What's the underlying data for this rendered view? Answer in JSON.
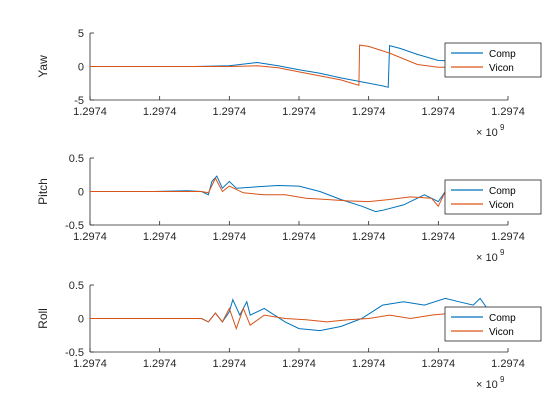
{
  "colors": {
    "comp": "#0072BD",
    "vicon": "#D95319",
    "axis": "#262626",
    "legend_border": "#262626",
    "background": "#FFFFFF"
  },
  "chart_data": [
    {
      "type": "line",
      "ylabel": "Yaw",
      "ylim": [
        -5,
        5
      ],
      "yticks": [
        "-5",
        "0",
        "5"
      ],
      "xticks": [
        "1.2974",
        "1.2974",
        "1.2974",
        "1.2974",
        "1.2974",
        "1.2974",
        "1.2974"
      ],
      "x_exponent_base": "× 10",
      "x_exponent": "9",
      "xlim": [
        0,
        6
      ],
      "legend_position": "right",
      "series": [
        {
          "name": "Comp",
          "color": "#0072BD",
          "points": [
            [
              0,
              0
            ],
            [
              0.5,
              0
            ],
            [
              1.0,
              0
            ],
            [
              1.5,
              0
            ],
            [
              2.0,
              0.1
            ],
            [
              2.4,
              0.6
            ],
            [
              2.7,
              0.1
            ],
            [
              3.0,
              -0.5
            ],
            [
              3.3,
              -1.0
            ],
            [
              3.6,
              -1.7
            ],
            [
              3.9,
              -2.3
            ],
            [
              4.2,
              -2.9
            ],
            [
              4.28,
              -3.1
            ],
            [
              4.3,
              3.1
            ],
            [
              4.45,
              2.7
            ],
            [
              4.7,
              1.8
            ],
            [
              5.0,
              0.9
            ],
            [
              5.4,
              0.8
            ],
            [
              5.8,
              0.8
            ],
            [
              6.0,
              0.8
            ]
          ]
        },
        {
          "name": "Vicon",
          "color": "#D95319",
          "points": [
            [
              0,
              0
            ],
            [
              0.5,
              0
            ],
            [
              1.0,
              0
            ],
            [
              1.5,
              0
            ],
            [
              2.0,
              0
            ],
            [
              2.4,
              0.1
            ],
            [
              2.7,
              -0.2
            ],
            [
              3.0,
              -0.8
            ],
            [
              3.3,
              -1.4
            ],
            [
              3.6,
              -2.0
            ],
            [
              3.86,
              -2.8
            ],
            [
              3.87,
              3.2
            ],
            [
              4.0,
              3.0
            ],
            [
              4.3,
              2.0
            ],
            [
              4.7,
              0.3
            ],
            [
              5.0,
              -0.1
            ],
            [
              5.4,
              -0.1
            ],
            [
              5.8,
              -0.1
            ],
            [
              6.0,
              -0.1
            ]
          ]
        }
      ]
    },
    {
      "type": "line",
      "ylabel": "Pitch",
      "ylim": [
        -0.5,
        0.5
      ],
      "yticks": [
        "-0.5",
        "0",
        "0.5"
      ],
      "xticks": [
        "1.2974",
        "1.2974",
        "1.2974",
        "1.2974",
        "1.2974",
        "1.2974",
        "1.2974"
      ],
      "x_exponent_base": "× 10",
      "x_exponent": "9",
      "xlim": [
        0,
        6
      ],
      "legend_position": "right",
      "series": [
        {
          "name": "Comp",
          "color": "#0072BD",
          "points": [
            [
              0,
              0
            ],
            [
              0.9,
              0
            ],
            [
              1.4,
              0.01
            ],
            [
              1.6,
              0.0
            ],
            [
              1.7,
              -0.05
            ],
            [
              1.75,
              0.15
            ],
            [
              1.82,
              0.23
            ],
            [
              1.9,
              0.05
            ],
            [
              2.0,
              0.15
            ],
            [
              2.1,
              0.05
            ],
            [
              2.4,
              0.07
            ],
            [
              2.7,
              0.09
            ],
            [
              3.0,
              0.08
            ],
            [
              3.3,
              0.0
            ],
            [
              3.6,
              -0.12
            ],
            [
              3.9,
              -0.22
            ],
            [
              4.1,
              -0.3
            ],
            [
              4.2,
              -0.28
            ],
            [
              4.5,
              -0.2
            ],
            [
              4.8,
              -0.05
            ],
            [
              5.0,
              -0.15
            ],
            [
              5.1,
              0.0
            ],
            [
              5.3,
              0.05
            ],
            [
              5.5,
              0.12
            ],
            [
              5.6,
              0.15
            ],
            [
              5.7,
              0.05
            ],
            [
              5.75,
              0.05
            ],
            [
              6.0,
              0.05
            ]
          ]
        },
        {
          "name": "Vicon",
          "color": "#D95319",
          "points": [
            [
              0,
              0
            ],
            [
              0.9,
              0
            ],
            [
              1.4,
              0.0
            ],
            [
              1.6,
              0.0
            ],
            [
              1.7,
              -0.02
            ],
            [
              1.8,
              0.2
            ],
            [
              1.9,
              0.0
            ],
            [
              2.0,
              0.08
            ],
            [
              2.2,
              -0.02
            ],
            [
              2.5,
              -0.05
            ],
            [
              2.8,
              -0.05
            ],
            [
              3.1,
              -0.1
            ],
            [
              3.4,
              -0.12
            ],
            [
              3.7,
              -0.14
            ],
            [
              4.0,
              -0.15
            ],
            [
              4.3,
              -0.12
            ],
            [
              4.6,
              -0.08
            ],
            [
              4.9,
              -0.1
            ],
            [
              5.0,
              -0.22
            ],
            [
              5.1,
              0.0
            ],
            [
              5.3,
              -0.05
            ],
            [
              5.5,
              0.05
            ],
            [
              5.6,
              0.0
            ],
            [
              6.0,
              0.0
            ]
          ]
        }
      ]
    },
    {
      "type": "line",
      "ylabel": "Roll",
      "ylim": [
        -0.5,
        0.5
      ],
      "yticks": [
        "-0.5",
        "0",
        "0.5"
      ],
      "xticks": [
        "1.2974",
        "1.2974",
        "1.2974",
        "1.2974",
        "1.2974",
        "1.2974",
        "1.2974"
      ],
      "x_exponent_base": "× 10",
      "x_exponent": "9",
      "xlim": [
        0,
        6
      ],
      "legend_position": "right",
      "series": [
        {
          "name": "Comp",
          "color": "#0072BD",
          "points": [
            [
              0,
              0
            ],
            [
              0.9,
              0
            ],
            [
              1.3,
              0.0
            ],
            [
              1.6,
              0.0
            ],
            [
              1.7,
              -0.05
            ],
            [
              1.8,
              0.08
            ],
            [
              1.9,
              -0.05
            ],
            [
              2.0,
              0.1
            ],
            [
              2.05,
              0.28
            ],
            [
              2.15,
              0.05
            ],
            [
              2.25,
              0.25
            ],
            [
              2.3,
              0.05
            ],
            [
              2.5,
              0.15
            ],
            [
              2.8,
              -0.05
            ],
            [
              3.0,
              -0.15
            ],
            [
              3.3,
              -0.18
            ],
            [
              3.6,
              -0.12
            ],
            [
              3.9,
              0.0
            ],
            [
              4.2,
              0.2
            ],
            [
              4.5,
              0.25
            ],
            [
              4.8,
              0.2
            ],
            [
              5.1,
              0.3
            ],
            [
              5.3,
              0.25
            ],
            [
              5.5,
              0.2
            ],
            [
              5.6,
              0.3
            ],
            [
              5.7,
              0.15
            ],
            [
              6.0,
              0.15
            ]
          ]
        },
        {
          "name": "Vicon",
          "color": "#D95319",
          "points": [
            [
              0,
              0
            ],
            [
              0.9,
              0
            ],
            [
              1.3,
              0.0
            ],
            [
              1.6,
              0.0
            ],
            [
              1.7,
              -0.05
            ],
            [
              1.8,
              0.08
            ],
            [
              1.9,
              -0.05
            ],
            [
              2.0,
              0.15
            ],
            [
              2.1,
              -0.15
            ],
            [
              2.2,
              0.15
            ],
            [
              2.3,
              -0.1
            ],
            [
              2.5,
              0.05
            ],
            [
              2.8,
              0.0
            ],
            [
              3.1,
              -0.02
            ],
            [
              3.4,
              -0.05
            ],
            [
              3.7,
              -0.02
            ],
            [
              4.0,
              0.0
            ],
            [
              4.3,
              0.05
            ],
            [
              4.6,
              0.0
            ],
            [
              4.9,
              0.05
            ],
            [
              5.2,
              0.08
            ],
            [
              5.5,
              0.0
            ],
            [
              5.6,
              0.0
            ],
            [
              6.0,
              0.0
            ]
          ]
        }
      ]
    }
  ]
}
